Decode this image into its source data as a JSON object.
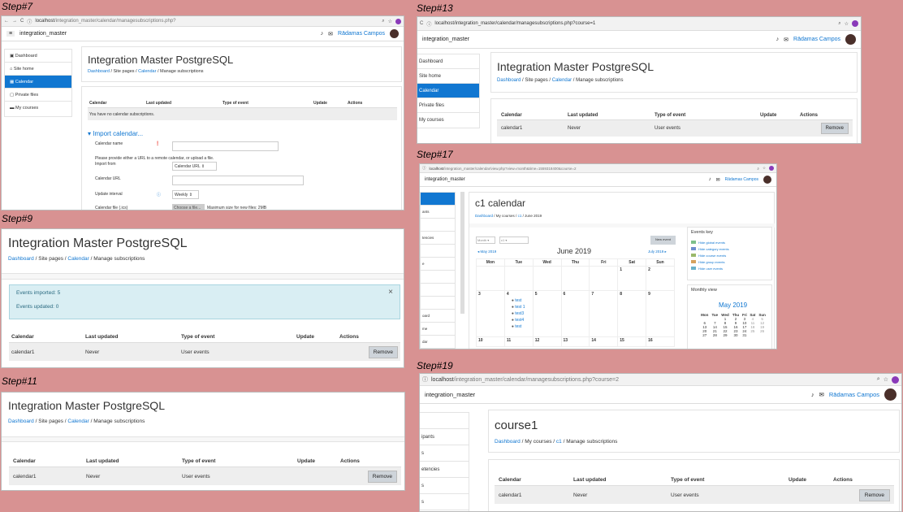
{
  "steps": {
    "s7": "Step#7",
    "s9": "Step#9",
    "s11": "Step#11",
    "s13": "Step#13",
    "s17": "Step#17",
    "s19": "Step#19"
  },
  "common": {
    "site_title": "Integration Master PostgreSQL",
    "breadcrumb": {
      "dashboard": "Dashboard",
      "site_pages": "Site pages",
      "calendar": "Calendar",
      "manage": "Manage subscriptions",
      "my_courses": "My courses",
      "c1": "c1"
    },
    "table_headers": {
      "calendar": "Calendar",
      "last_updated": "Last updated",
      "type": "Type of event",
      "update": "Update",
      "actions": "Actions"
    },
    "row": {
      "calendar": "calendar1",
      "last_updated": "Never",
      "type": "User events",
      "remove": "Remove"
    },
    "user": "Rādamas Campos",
    "brand": "integration_master",
    "sep": "/"
  },
  "s7": {
    "url_host": "localhost",
    "url_path": "/integration_master/calendar/managesubscriptions.php?",
    "sidebar": [
      "Dashboard",
      "Site home",
      "Calendar",
      "Private files",
      "My courses"
    ],
    "empty_msg": "You have no calendar subscriptions.",
    "import_title": "Import calendar...",
    "form": {
      "name_label": "Calendar name",
      "info": "Please provide either a URL to a remote calendar, or upload a file.",
      "import_from": "Import from",
      "import_value": "Calendar URL",
      "url_label": "Calendar URL",
      "interval_label": "Update interval",
      "interval_value": "Weekly",
      "file_label": "Calendar file (.ics)",
      "choose": "Choose a file...",
      "max": "Maximum size for new files: 2MB"
    }
  },
  "s9": {
    "alert1": "Events imported: 5",
    "alert2": "Events updated: 0"
  },
  "s13": {
    "url": "localhost/integration_master/calendar/managesubscriptions.php?course=1",
    "sidebar": [
      "Dashboard",
      "Site home",
      "Calendar",
      "Private files",
      "My courses"
    ]
  },
  "s17": {
    "url_host": "localhost",
    "url_path": "/integration_master/calendar/view.php?view=month&time=1559318400&course=2",
    "title": "c1 calendar",
    "bc_date": "June 2019",
    "filter1": "Month",
    "filter2": "c1",
    "new_event": "New event",
    "prev": "May 2019",
    "month": "June 2019",
    "next": "July 2019",
    "days": [
      "Mon",
      "Tue",
      "Wed",
      "Thu",
      "Fri",
      "Sat",
      "Sun"
    ],
    "week1": [
      "",
      "",
      "",
      "",
      "",
      "1",
      "2"
    ],
    "week2": [
      "3",
      "4",
      "5",
      "6",
      "7",
      "8",
      "9"
    ],
    "week3": [
      "10",
      "11",
      "12",
      "13",
      "14",
      "15",
      "16"
    ],
    "events": [
      "test",
      "test 1",
      "test3",
      "test4",
      "test"
    ],
    "events_key_title": "Events key",
    "events_key": [
      "Hide global events",
      "Hide category events",
      "Hide course events",
      "Hide group events",
      "Hide user events"
    ],
    "monthly_view": "Monthly view",
    "mini_month": "May 2019",
    "mini_days": [
      "Mon",
      "Tue",
      "Wed",
      "Thu",
      "Fri",
      "Sat",
      "Sun"
    ],
    "mini_rows": [
      [
        "",
        "",
        "1",
        "2",
        "3",
        "4",
        "5"
      ],
      [
        "6",
        "7",
        "8",
        "9",
        "10",
        "11",
        "12"
      ],
      [
        "13",
        "14",
        "15",
        "16",
        "17",
        "18",
        "19"
      ],
      [
        "20",
        "21",
        "22",
        "23",
        "24",
        "25",
        "26"
      ],
      [
        "27",
        "28",
        "29",
        "30",
        "31",
        "",
        ""
      ]
    ],
    "sidebar": [
      "",
      "ants",
      "",
      "tencies",
      "",
      "e",
      "",
      "",
      "",
      "oard",
      "me",
      "dar"
    ]
  },
  "s19": {
    "url_host": "localhost",
    "url_path": "/integration_master/calendar/managesubscriptions.php?course=2",
    "course_title": "course1",
    "sidebar": [
      "",
      "ipants",
      "s",
      "etencies",
      "s",
      "s",
      "nd"
    ]
  }
}
